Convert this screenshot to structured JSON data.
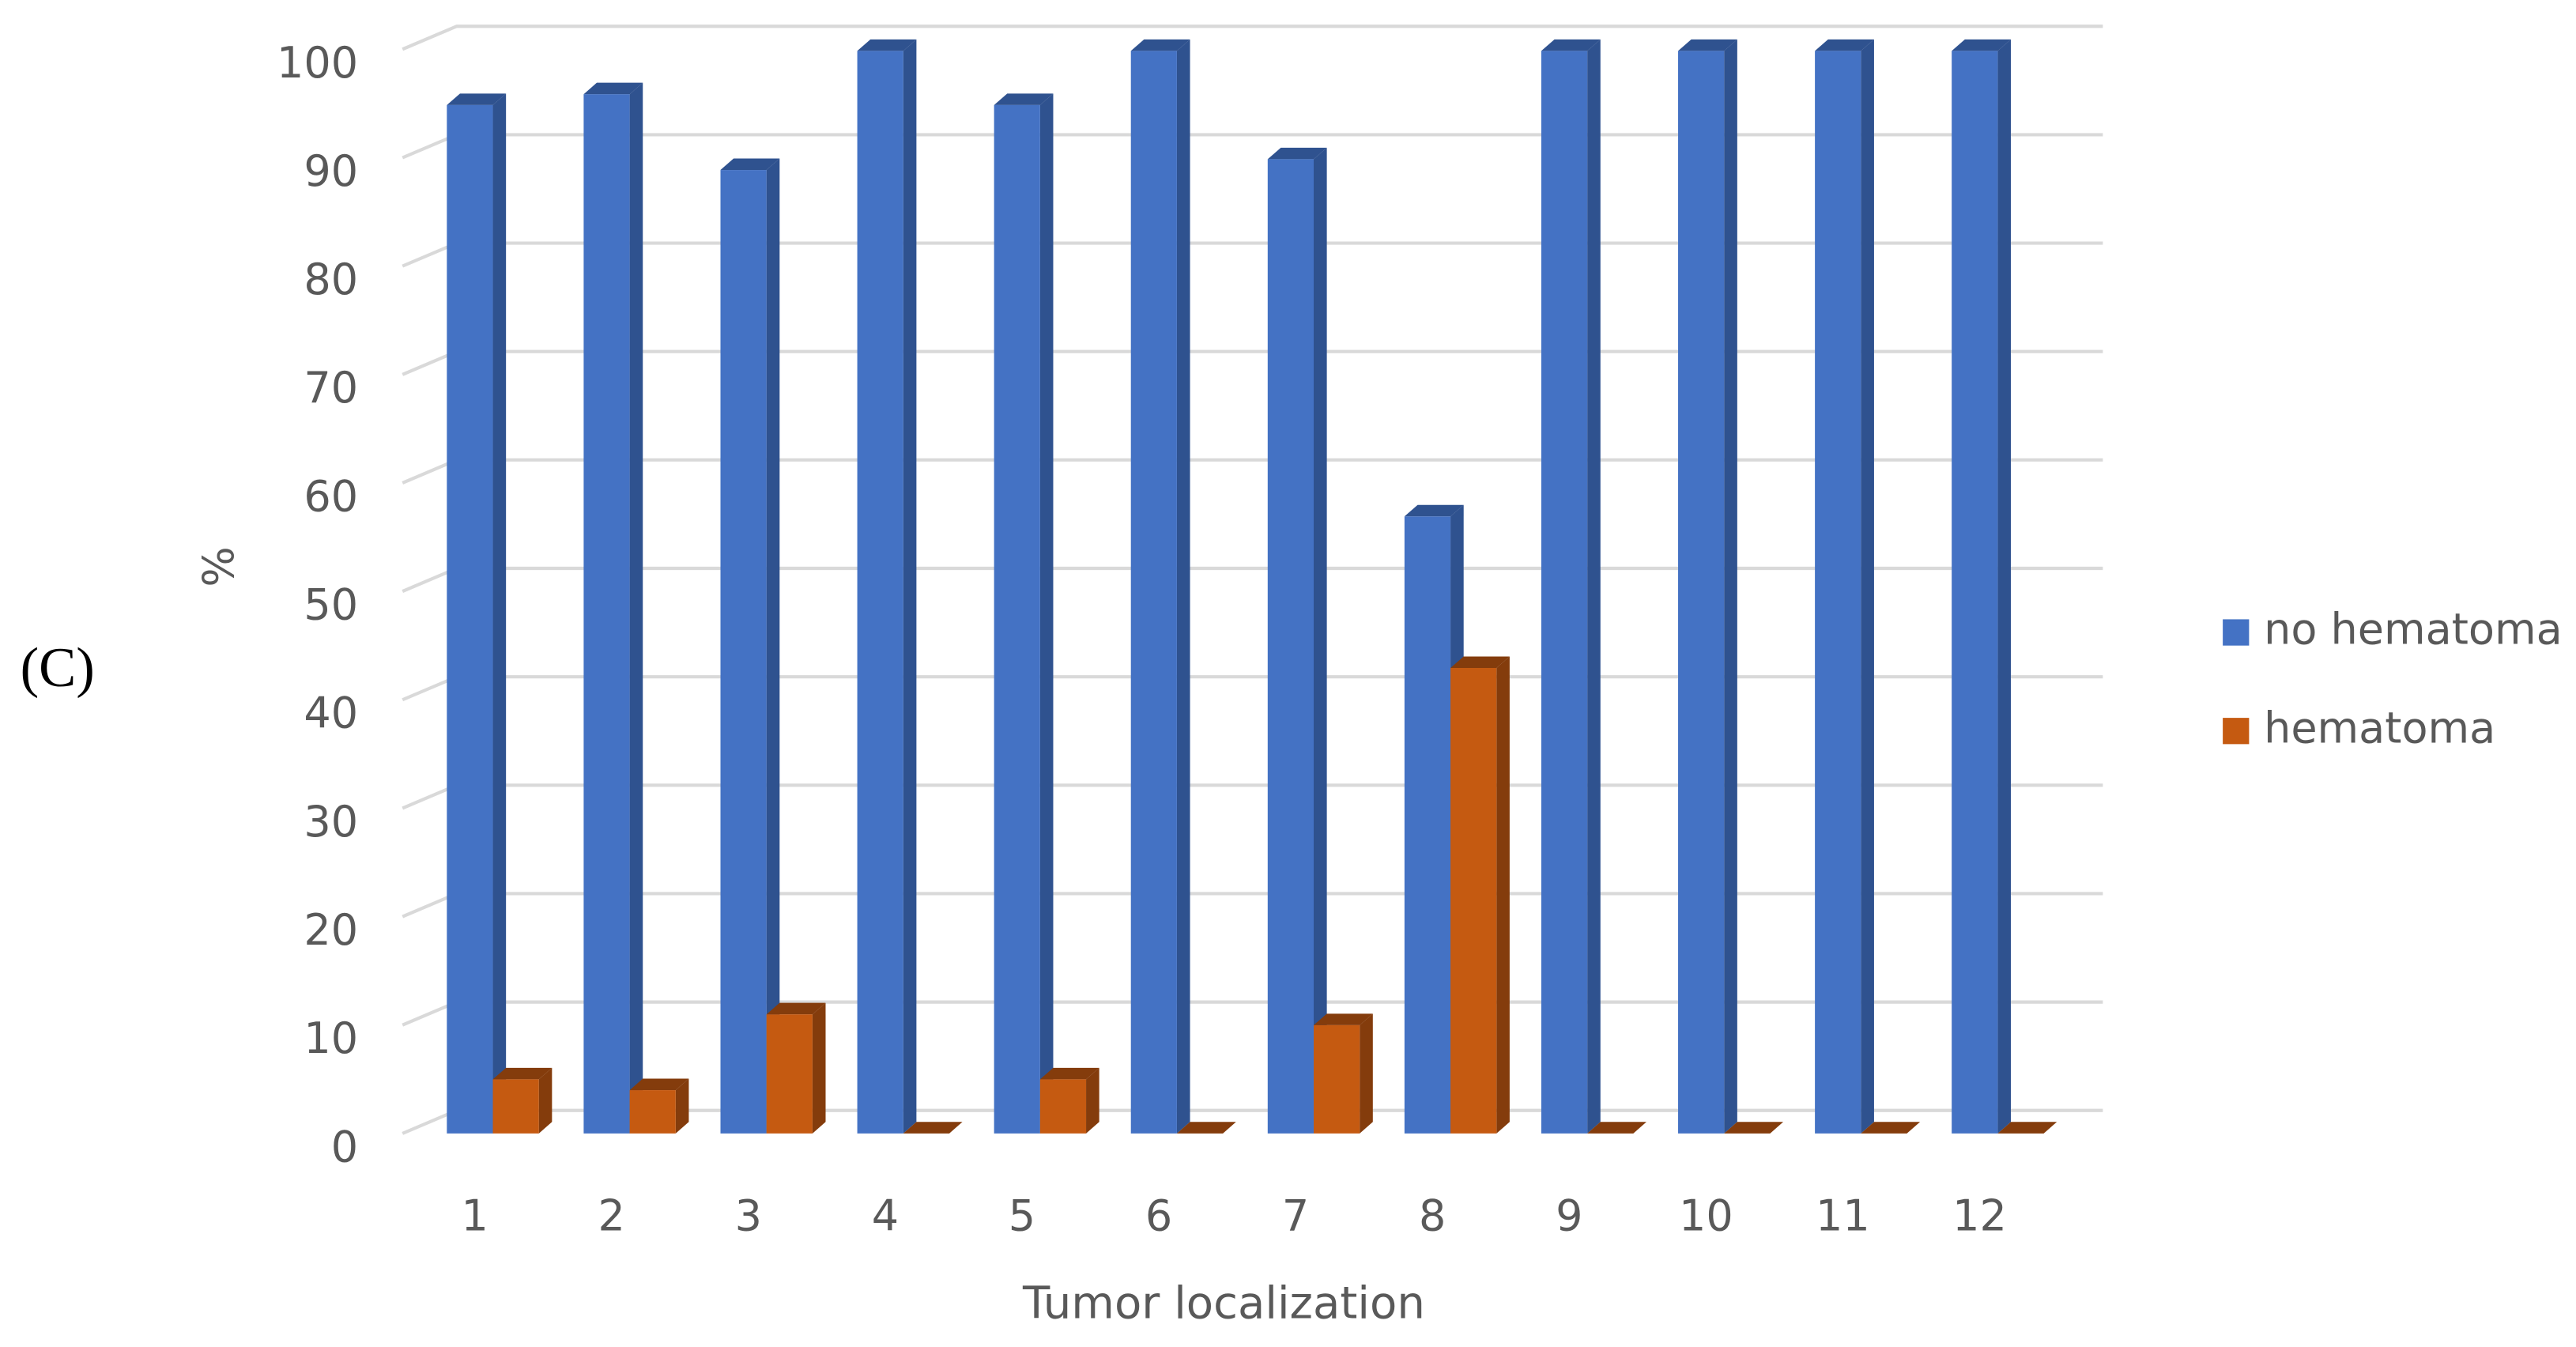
{
  "chart_data": {
    "type": "bar3d",
    "panel_label": "(C)",
    "y_label": "%",
    "x_label": "Tumor localization",
    "categories": [
      "1",
      "2",
      "3",
      "4",
      "5",
      "6",
      "7",
      "8",
      "9",
      "10",
      "11",
      "12"
    ],
    "series": [
      {
        "name": "no hematoma",
        "color": "#4472c4",
        "side_color": "#2f528f",
        "values": [
          95,
          96,
          89,
          100,
          95,
          100,
          90,
          57,
          100,
          100,
          100,
          100
        ]
      },
      {
        "name": "hematoma",
        "color": "#c55a11",
        "side_color": "#843c0c",
        "values": [
          5,
          4,
          11,
          0,
          5,
          0,
          10,
          43,
          0,
          0,
          0,
          0
        ]
      }
    ],
    "ylim": [
      0,
      100
    ],
    "yticks": [
      0,
      10,
      20,
      30,
      40,
      50,
      60,
      70,
      80,
      90,
      100
    ],
    "grid": true,
    "legend": "right"
  }
}
